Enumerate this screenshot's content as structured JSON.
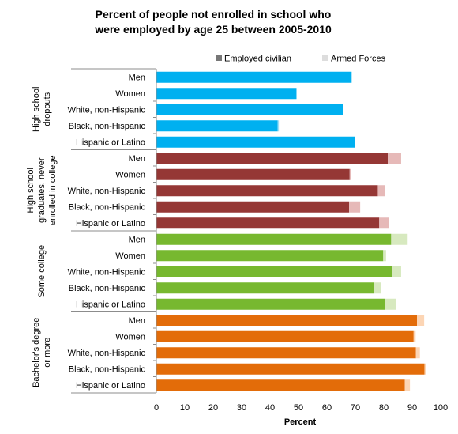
{
  "chart_data": {
    "type": "bar",
    "orientation": "horizontal",
    "stacked": true,
    "title_line1": "Percent of people not enrolled in school who",
    "title_line2": "were employed by age 25 between 2005-2010",
    "xlabel": "Percent",
    "ylabel": "",
    "xlim": [
      0,
      100
    ],
    "x_ticks": [
      0,
      10,
      20,
      30,
      40,
      50,
      60,
      70,
      80,
      90,
      100
    ],
    "grid": false,
    "legend_position": "top-right",
    "legend": [
      {
        "name": "Employed civilian",
        "swatch_color": "#777777"
      },
      {
        "name": "Armed Forces",
        "swatch_color": "#dddddd"
      }
    ],
    "groups": [
      {
        "label": "High school dropouts",
        "label_lines": [
          "High school",
          "dropouts"
        ],
        "employed_color": "#00b0f0",
        "armed_color": "#9fdff6",
        "categories": [
          "Men",
          "Women",
          "White, non-Hispanic",
          "Black, non-Hispanic",
          "Hispanic or Latino"
        ],
        "employed": [
          68.7,
          49.3,
          65.6,
          42.7,
          70.0
        ],
        "armed": [
          0.0,
          0.0,
          0.0,
          0.4,
          0.0
        ]
      },
      {
        "label": "High school graduates, never enrolled in college",
        "label_lines": [
          "High school",
          "graduates, never",
          "enrolled in college"
        ],
        "employed_color": "#953735",
        "armed_color": "#e6b9b8",
        "categories": [
          "Men",
          "Women",
          "White, non-Hispanic",
          "Black, non-Hispanic",
          "Hispanic or Latino"
        ],
        "employed": [
          81.4,
          68.0,
          77.9,
          67.8,
          78.4
        ],
        "armed": [
          4.7,
          0.5,
          2.6,
          3.9,
          3.3
        ]
      },
      {
        "label": "Some college",
        "label_lines": [
          "Some college"
        ],
        "employed_color": "#77b82f",
        "armed_color": "#d7e9bf",
        "categories": [
          "Men",
          "Women",
          "White, non-Hispanic",
          "Black, non-Hispanic",
          "Hispanic or Latino"
        ],
        "employed": [
          82.6,
          79.8,
          83.0,
          76.5,
          80.4
        ],
        "armed": [
          5.8,
          1.0,
          3.1,
          2.4,
          4.0
        ]
      },
      {
        "label": "Bachelor's degree or more",
        "label_lines": [
          "Bachelor's degree",
          "or more"
        ],
        "employed_color": "#e36c09",
        "armed_color": "#fcd5b4",
        "categories": [
          "Men",
          "Women",
          "White, non-Hispanic",
          "Black, non-Hispanic",
          "Hispanic or Latino"
        ],
        "employed": [
          91.7,
          90.5,
          91.3,
          94.3,
          87.4
        ],
        "armed": [
          2.5,
          0.7,
          1.4,
          0.6,
          1.8
        ]
      }
    ]
  }
}
